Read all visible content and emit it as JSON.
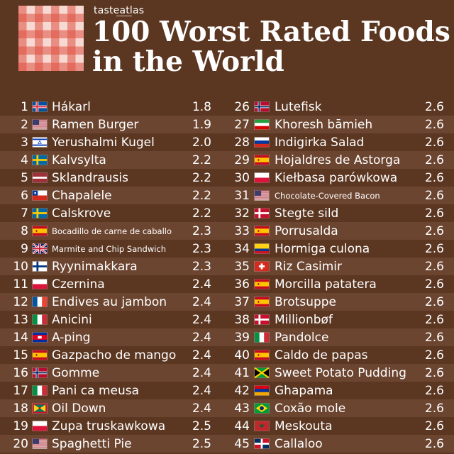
{
  "brand": "tasteatlas",
  "title_line1": "100 Worst Rated Foods",
  "title_line2": "in the World",
  "left_column": [
    {
      "rank": "1",
      "name": "Hákarl",
      "score": "1.8",
      "flag": "iceland",
      "colors": [
        "#02529c",
        "#dc1e35",
        "#ffffff"
      ]
    },
    {
      "rank": "2",
      "name": "Ramen Burger",
      "score": "1.9",
      "flag": "usa",
      "colors": [
        "#b22234",
        "#ffffff",
        "#3c3b6e"
      ]
    },
    {
      "rank": "3",
      "name": "Yerushalmi Kugel",
      "score": "2.0",
      "flag": "israel",
      "colors": [
        "#ffffff",
        "#0038b8"
      ]
    },
    {
      "rank": "4",
      "name": "Kalvsylta",
      "score": "2.2",
      "flag": "sweden",
      "colors": [
        "#006aa7",
        "#fecc00"
      ]
    },
    {
      "rank": "5",
      "name": "Sklandrausis",
      "score": "2.2",
      "flag": "latvia",
      "colors": [
        "#9e3039",
        "#ffffff"
      ]
    },
    {
      "rank": "6",
      "name": "Chapalele",
      "score": "2.2",
      "flag": "chile",
      "colors": [
        "#ffffff",
        "#d52b1e",
        "#0039a6"
      ]
    },
    {
      "rank": "7",
      "name": "Calskrove",
      "score": "2.2",
      "flag": "sweden",
      "colors": [
        "#006aa7",
        "#fecc00"
      ]
    },
    {
      "rank": "8",
      "name": "Bocadillo de carne de caballo",
      "score": "2.3",
      "flag": "spain",
      "colors": [
        "#c60b1e",
        "#ffc400"
      ],
      "small": true
    },
    {
      "rank": "9",
      "name": "Marmite and Chip Sandwich",
      "score": "2.3",
      "flag": "uk",
      "colors": [
        "#012169",
        "#ffffff",
        "#c8102e"
      ],
      "small": true
    },
    {
      "rank": "10",
      "name": "Ryynimakkara",
      "score": "2.3",
      "flag": "finland",
      "colors": [
        "#ffffff",
        "#003580"
      ]
    },
    {
      "rank": "11",
      "name": "Czernina",
      "score": "2.4",
      "flag": "poland",
      "colors": [
        "#ffffff",
        "#dc143c"
      ]
    },
    {
      "rank": "12",
      "name": "Endives au jambon",
      "score": "2.4",
      "flag": "france",
      "colors": [
        "#0055a4",
        "#ffffff",
        "#ef4135"
      ]
    },
    {
      "rank": "13",
      "name": "Anicini",
      "score": "2.4",
      "flag": "italy",
      "colors": [
        "#009246",
        "#ffffff",
        "#ce2b37"
      ]
    },
    {
      "rank": "14",
      "name": "A-ping",
      "score": "2.4",
      "flag": "cambodia",
      "colors": [
        "#032ea1",
        "#e00025",
        "#ffffff"
      ]
    },
    {
      "rank": "15",
      "name": "Gazpacho de mango",
      "score": "2.4",
      "flag": "spain",
      "colors": [
        "#c60b1e",
        "#ffc400"
      ]
    },
    {
      "rank": "16",
      "name": "Gomme",
      "score": "2.4",
      "flag": "norway",
      "colors": [
        "#ba0c2f",
        "#ffffff",
        "#00205b"
      ]
    },
    {
      "rank": "17",
      "name": "Pani ca meusa",
      "score": "2.4",
      "flag": "italy",
      "colors": [
        "#009246",
        "#ffffff",
        "#ce2b37"
      ]
    },
    {
      "rank": "18",
      "name": "Oil Down",
      "score": "2.4",
      "flag": "grenada",
      "colors": [
        "#ce1126",
        "#007a5e",
        "#fcd116"
      ]
    },
    {
      "rank": "19",
      "name": "Zupa truskawkowa",
      "score": "2.5",
      "flag": "poland",
      "colors": [
        "#ffffff",
        "#dc143c"
      ]
    },
    {
      "rank": "20",
      "name": "Spaghetti Pie",
      "score": "2.5",
      "flag": "usa",
      "colors": [
        "#b22234",
        "#ffffff",
        "#3c3b6e"
      ]
    }
  ],
  "right_column": [
    {
      "rank": "26",
      "name": "Lutefisk",
      "score": "2.6",
      "flag": "norway",
      "colors": [
        "#ba0c2f",
        "#ffffff",
        "#00205b"
      ]
    },
    {
      "rank": "27",
      "name": "Khoresh bāmieh",
      "score": "2.6",
      "flag": "iran",
      "colors": [
        "#239f40",
        "#ffffff",
        "#da0000"
      ]
    },
    {
      "rank": "28",
      "name": "Indigirka Salad",
      "score": "2.6",
      "flag": "russia",
      "colors": [
        "#ffffff",
        "#0039a6",
        "#d52b1e"
      ]
    },
    {
      "rank": "29",
      "name": "Hojaldres de Astorga",
      "score": "2.6",
      "flag": "spain",
      "colors": [
        "#c60b1e",
        "#ffc400"
      ]
    },
    {
      "rank": "30",
      "name": "Kiełbasa parówkowa",
      "score": "2.6",
      "flag": "poland",
      "colors": [
        "#ffffff",
        "#dc143c"
      ]
    },
    {
      "rank": "31",
      "name": "Chocolate-Covered Bacon",
      "score": "2.6",
      "flag": "usa",
      "colors": [
        "#b22234",
        "#ffffff",
        "#3c3b6e"
      ],
      "small": true
    },
    {
      "rank": "32",
      "name": "Stegte sild",
      "score": "2.6",
      "flag": "denmark",
      "colors": [
        "#c8102e",
        "#ffffff"
      ]
    },
    {
      "rank": "33",
      "name": "Porrusalda",
      "score": "2.6",
      "flag": "spain",
      "colors": [
        "#c60b1e",
        "#ffc400"
      ]
    },
    {
      "rank": "34",
      "name": "Hormiga culona",
      "score": "2.6",
      "flag": "colombia",
      "colors": [
        "#fcd116",
        "#003893",
        "#ce1126"
      ]
    },
    {
      "rank": "35",
      "name": "Riz Casimir",
      "score": "2.6",
      "flag": "switzerland",
      "colors": [
        "#d52b1e",
        "#ffffff"
      ]
    },
    {
      "rank": "36",
      "name": "Morcilla patatera",
      "score": "2.6",
      "flag": "spain",
      "colors": [
        "#c60b1e",
        "#ffc400"
      ]
    },
    {
      "rank": "37",
      "name": "Brotsuppe",
      "score": "2.6",
      "flag": "spain",
      "colors": [
        "#c60b1e",
        "#ffc400"
      ]
    },
    {
      "rank": "38",
      "name": "Millionbøf",
      "score": "2.6",
      "flag": "denmark",
      "colors": [
        "#c8102e",
        "#ffffff"
      ]
    },
    {
      "rank": "39",
      "name": "Pandolce",
      "score": "2.6",
      "flag": "italy",
      "colors": [
        "#009246",
        "#ffffff",
        "#ce2b37"
      ]
    },
    {
      "rank": "40",
      "name": "Caldo de papas",
      "score": "2.6",
      "flag": "spain",
      "colors": [
        "#c60b1e",
        "#ffc400"
      ]
    },
    {
      "rank": "41",
      "name": "Sweet Potato Pudding",
      "score": "2.6",
      "flag": "jamaica",
      "colors": [
        "#009b3a",
        "#fed100",
        "#000000"
      ]
    },
    {
      "rank": "42",
      "name": "Ghapama",
      "score": "2.6",
      "flag": "armenia",
      "colors": [
        "#d90012",
        "#0033a0",
        "#f2a800"
      ]
    },
    {
      "rank": "43",
      "name": "Coxão mole",
      "score": "2.6",
      "flag": "brazil",
      "colors": [
        "#009c3b",
        "#ffdf00",
        "#002776"
      ]
    },
    {
      "rank": "44",
      "name": "Meskouta",
      "score": "2.6",
      "flag": "morocco",
      "colors": [
        "#c1272d",
        "#006233"
      ]
    },
    {
      "rank": "45",
      "name": "Callaloo",
      "score": "2.6",
      "flag": "dominican-republic",
      "colors": [
        "#002d62",
        "#ce1126",
        "#ffffff"
      ]
    }
  ]
}
